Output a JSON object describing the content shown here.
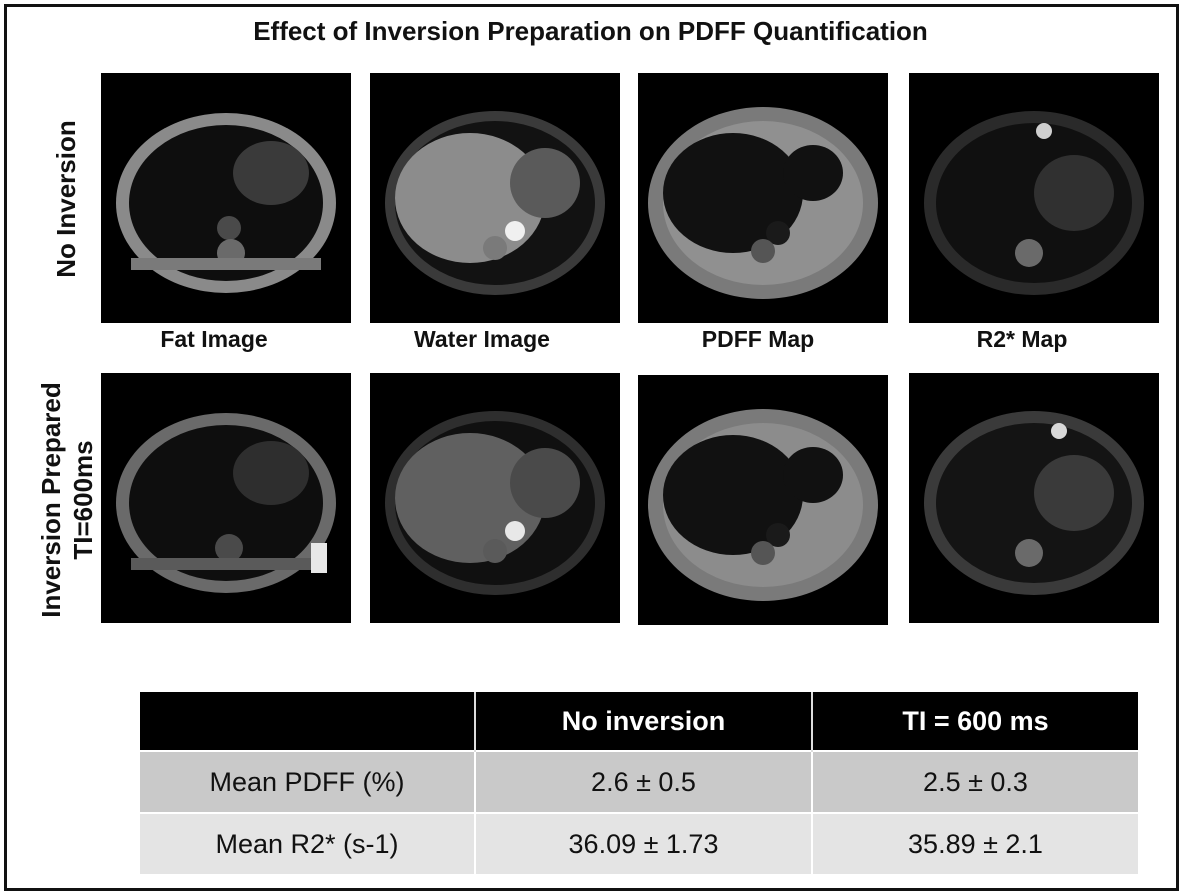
{
  "figure": {
    "title": "Effect of Inversion Preparation on PDFF Quantification",
    "row_labels": {
      "row1": "No Inversion",
      "row2_line1": "Inversion Prepared",
      "row2_line2": "TI=600ms"
    },
    "column_labels": [
      "Fat Image",
      "Water Image",
      "PDFF Map",
      "R2* Map"
    ]
  },
  "table": {
    "headers": [
      "",
      "No inversion",
      "TI = 600 ms"
    ],
    "rows": [
      {
        "label": "Mean PDFF (%)",
        "no_inversion": "2.6 ± 0.5",
        "ti600": "2.5 ± 0.3"
      },
      {
        "label": "Mean R2* (s-1)",
        "no_inversion": "36.09 ± 1.73",
        "ti600": "35.89 ± 2.1"
      }
    ]
  }
}
